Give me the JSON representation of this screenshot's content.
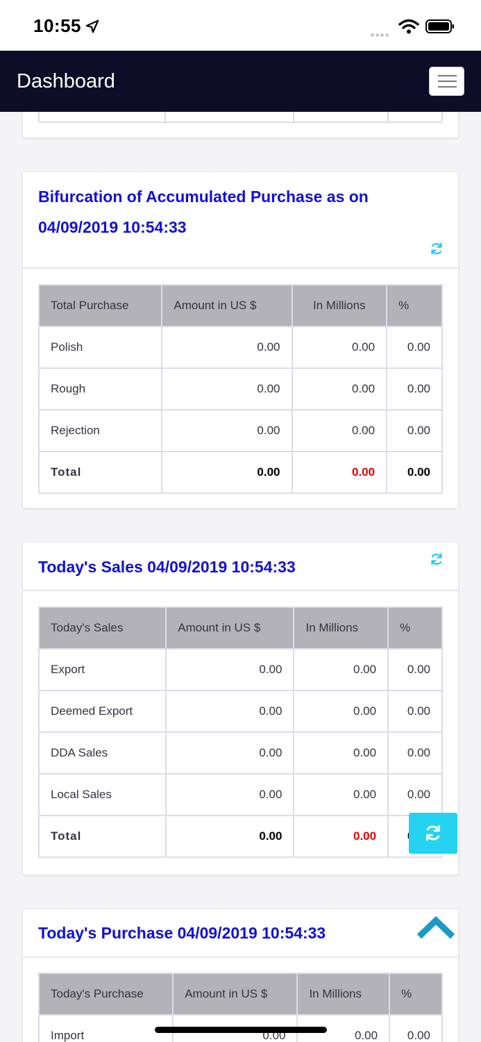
{
  "status": {
    "time": "10:55"
  },
  "nav": {
    "title": "Dashboard"
  },
  "purchase_bifurcation": {
    "title_line1": "Bifurcation of Accumulated Purchase as on",
    "title_line2": "04/09/2019 10:54:33",
    "headers": [
      "Total Purchase",
      "Amount in US $",
      "In Millions",
      "%"
    ],
    "rows": [
      [
        "Polish",
        "0.00",
        "0.00",
        "0.00"
      ],
      [
        "Rough",
        "0.00",
        "0.00",
        "0.00"
      ],
      [
        "Rejection",
        "0.00",
        "0.00",
        "0.00"
      ]
    ],
    "total": [
      "Total",
      "0.00",
      "0.00",
      "0.00"
    ]
  },
  "todays_sales": {
    "title": "Today's Sales 04/09/2019 10:54:33",
    "headers": [
      "Today's Sales",
      "Amount in US $",
      "In Millions",
      "%"
    ],
    "rows": [
      [
        "Export",
        "0.00",
        "0.00",
        "0.00"
      ],
      [
        "Deemed Export",
        "0.00",
        "0.00",
        "0.00"
      ],
      [
        "DDA Sales",
        "0.00",
        "0.00",
        "0.00"
      ],
      [
        "Local Sales",
        "0.00",
        "0.00",
        "0.00"
      ]
    ],
    "total": [
      "Total",
      "0.00",
      "0.00",
      "0.00"
    ]
  },
  "todays_purchase": {
    "title": "Today's Purchase 04/09/2019 10:54:33",
    "headers": [
      "Today's Purchase",
      "Amount in US $",
      "In Millions",
      "%"
    ],
    "rows": [
      [
        "Import",
        "0.00",
        "0.00",
        "0.00"
      ]
    ]
  },
  "colors": {
    "nav_bg": "#0e0c26",
    "title_blue": "#1010d8",
    "accent_cyan": "#25d2f0",
    "total_red": "#e60000",
    "header_gray": "#b3b3b7"
  },
  "icons": [
    "location-arrow-icon",
    "wifi-icon",
    "battery-icon",
    "hamburger-menu-icon",
    "refresh-icon",
    "chevron-up-icon"
  ]
}
